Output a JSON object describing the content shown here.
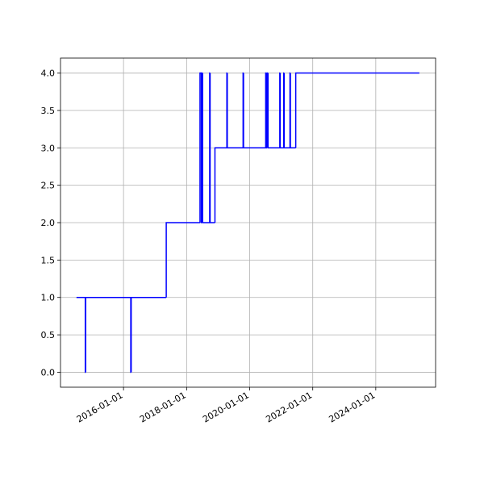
{
  "chart_data": {
    "type": "step",
    "x": [
      "2014-07-05",
      "2014-10-15",
      "2014-10-20",
      "2016-03-25",
      "2016-03-30",
      "2017-05-10",
      "2018-06-05",
      "2018-06-20",
      "2018-06-25",
      "2018-07-05",
      "2018-09-25",
      "2018-09-30",
      "2018-11-25",
      "2019-04-12",
      "2019-04-17",
      "2019-10-17",
      "2019-10-22",
      "2020-07-05",
      "2020-07-10",
      "2020-07-20",
      "2020-08-01",
      "2020-12-15",
      "2020-12-20",
      "2021-01-30",
      "2021-02-04",
      "2021-04-12",
      "2021-04-17",
      "2021-06-18",
      "2025-05-20"
    ],
    "values": [
      1,
      0,
      1,
      0,
      1,
      2,
      4,
      2,
      4,
      2,
      4,
      2,
      3,
      4,
      3,
      4,
      3,
      4,
      3,
      4,
      3,
      4,
      3,
      4,
      3,
      4,
      3,
      4,
      4
    ],
    "color": "#0000ff",
    "xlim": [
      "2014-01-01",
      "2025-11-24"
    ],
    "xticks": [
      "2016-01-01",
      "2018-01-01",
      "2020-01-01",
      "2022-01-01",
      "2024-01-01"
    ],
    "ylim": [
      -0.2,
      4.2
    ],
    "yticks": [
      {
        "value": 0,
        "label": "0.0"
      },
      {
        "value": 0.5,
        "label": "0.5"
      },
      {
        "value": 1,
        "label": "1.0"
      },
      {
        "value": 1.5,
        "label": "1.5"
      },
      {
        "value": 2,
        "label": "2.0"
      },
      {
        "value": 2.5,
        "label": "2.5"
      },
      {
        "value": 3,
        "label": "3.0"
      },
      {
        "value": 3.5,
        "label": "3.5"
      },
      {
        "value": 4,
        "label": "4.0"
      }
    ],
    "grid": true
  }
}
